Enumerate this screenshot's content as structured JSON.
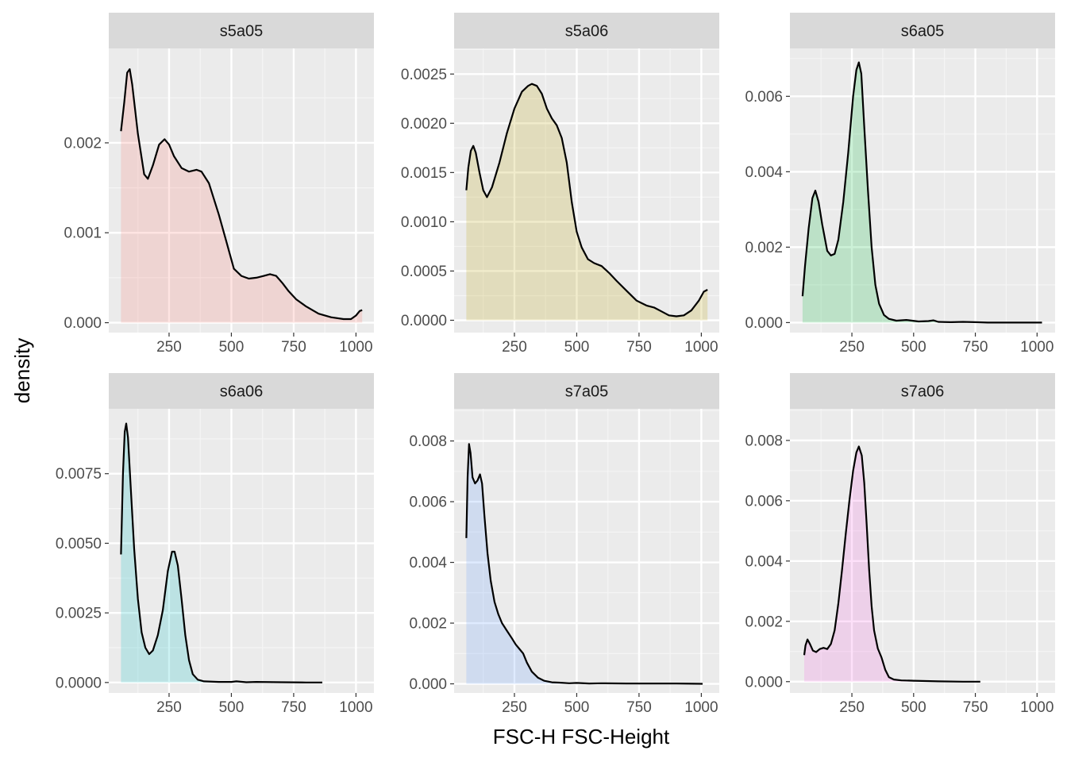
{
  "chart_data": {
    "type": "area",
    "xlabel": "FSC-H FSC-Height",
    "ylabel": "density",
    "grid": true,
    "legend": "none",
    "panels": [
      {
        "name": "s5a05",
        "color": "#F8766D",
        "xlim": [
          8,
          1072
        ],
        "ylim": [
          -0.00011,
          0.00305
        ],
        "xticks": [
          250,
          500,
          750,
          1000
        ],
        "yticks": [
          0,
          0.001,
          0.002
        ],
        "ytick_labels": [
          "0.000",
          "0.001",
          "0.002"
        ],
        "points": [
          [
            57,
            0.00213
          ],
          [
            70,
            0.00245
          ],
          [
            82,
            0.00278
          ],
          [
            92,
            0.00282
          ],
          [
            102,
            0.00265
          ],
          [
            125,
            0.0021
          ],
          [
            150,
            0.00165
          ],
          [
            165,
            0.0016
          ],
          [
            185,
            0.00175
          ],
          [
            210,
            0.00198
          ],
          [
            232,
            0.00204
          ],
          [
            250,
            0.00198
          ],
          [
            270,
            0.00185
          ],
          [
            300,
            0.00172
          ],
          [
            330,
            0.00168
          ],
          [
            360,
            0.0017
          ],
          [
            380,
            0.00168
          ],
          [
            410,
            0.00155
          ],
          [
            450,
            0.0012
          ],
          [
            480,
            0.0009
          ],
          [
            510,
            0.0006
          ],
          [
            540,
            0.00052
          ],
          [
            570,
            0.00049
          ],
          [
            600,
            0.0005
          ],
          [
            630,
            0.00052
          ],
          [
            655,
            0.00054
          ],
          [
            680,
            0.00052
          ],
          [
            705,
            0.00044
          ],
          [
            730,
            0.00035
          ],
          [
            760,
            0.00026
          ],
          [
            800,
            0.00018
          ],
          [
            850,
            0.0001
          ],
          [
            900,
            6e-05
          ],
          [
            950,
            4e-05
          ],
          [
            980,
            4e-05
          ],
          [
            1000,
            8e-05
          ],
          [
            1015,
            0.00013
          ],
          [
            1025,
            0.00014
          ]
        ]
      },
      {
        "name": "s5a06",
        "color": "#B79F00",
        "xlim": [
          8,
          1072
        ],
        "ylim": [
          -0.000125,
          0.00276
        ],
        "xticks": [
          250,
          500,
          750,
          1000
        ],
        "yticks": [
          0,
          0.0005,
          0.001,
          0.0015,
          0.002,
          0.0025
        ],
        "ytick_labels": [
          "0.0000",
          "0.0005",
          "0.0010",
          "0.0015",
          "0.0020",
          "0.0025"
        ],
        "points": [
          [
            57,
            0.00132
          ],
          [
            65,
            0.00155
          ],
          [
            75,
            0.00172
          ],
          [
            85,
            0.00177
          ],
          [
            95,
            0.0017
          ],
          [
            110,
            0.0015
          ],
          [
            125,
            0.00132
          ],
          [
            140,
            0.00125
          ],
          [
            160,
            0.00135
          ],
          [
            190,
            0.0016
          ],
          [
            220,
            0.0019
          ],
          [
            250,
            0.00215
          ],
          [
            280,
            0.00232
          ],
          [
            305,
            0.00238
          ],
          [
            320,
            0.0024
          ],
          [
            340,
            0.00238
          ],
          [
            360,
            0.0023
          ],
          [
            380,
            0.00215
          ],
          [
            400,
            0.00205
          ],
          [
            420,
            0.00198
          ],
          [
            440,
            0.00185
          ],
          [
            460,
            0.0016
          ],
          [
            480,
            0.0012
          ],
          [
            500,
            0.0009
          ],
          [
            520,
            0.00074
          ],
          [
            545,
            0.00062
          ],
          [
            570,
            0.00058
          ],
          [
            600,
            0.00055
          ],
          [
            630,
            0.00048
          ],
          [
            660,
            0.0004
          ],
          [
            700,
            0.0003
          ],
          [
            740,
            0.0002
          ],
          [
            780,
            0.00015
          ],
          [
            810,
            0.00013
          ],
          [
            840,
            9e-05
          ],
          [
            870,
            5e-05
          ],
          [
            900,
            4e-05
          ],
          [
            930,
            5e-05
          ],
          [
            960,
            0.0001
          ],
          [
            990,
            0.0002
          ],
          [
            1010,
            0.00029
          ],
          [
            1025,
            0.00031
          ]
        ]
      },
      {
        "name": "s6a05",
        "color": "#00BA38",
        "xlim": [
          -1,
          1073
        ],
        "ylim": [
          -0.000265,
          0.00727
        ],
        "xticks": [
          250,
          500,
          750,
          1000
        ],
        "yticks": [
          0,
          0.002,
          0.004,
          0.006
        ],
        "ytick_labels": [
          "0.000",
          "0.002",
          "0.004",
          "0.006"
        ],
        "points": [
          [
            50,
            0.0007
          ],
          [
            60,
            0.0015
          ],
          [
            75,
            0.0025
          ],
          [
            90,
            0.0033
          ],
          [
            102,
            0.0035
          ],
          [
            115,
            0.0032
          ],
          [
            130,
            0.0026
          ],
          [
            150,
            0.0019
          ],
          [
            165,
            0.00178
          ],
          [
            180,
            0.00182
          ],
          [
            195,
            0.0022
          ],
          [
            215,
            0.0032
          ],
          [
            235,
            0.0045
          ],
          [
            255,
            0.006
          ],
          [
            268,
            0.0067
          ],
          [
            278,
            0.0069
          ],
          [
            288,
            0.0066
          ],
          [
            300,
            0.0052
          ],
          [
            315,
            0.0035
          ],
          [
            330,
            0.002
          ],
          [
            345,
            0.001
          ],
          [
            360,
            0.0005
          ],
          [
            380,
            0.0002
          ],
          [
            400,
            0.0001
          ],
          [
            430,
            5e-05
          ],
          [
            470,
            7e-05
          ],
          [
            520,
            3e-05
          ],
          [
            560,
            4e-05
          ],
          [
            580,
            6e-05
          ],
          [
            600,
            2e-05
          ],
          [
            650,
            1e-05
          ],
          [
            700,
            2e-05
          ],
          [
            750,
            1e-05
          ],
          [
            800,
            0
          ],
          [
            900,
            0
          ],
          [
            1020,
            0
          ]
        ]
      },
      {
        "name": "s6a06",
        "color": "#00BFC4",
        "xlim": [
          8,
          1072
        ],
        "ylim": [
          -0.000375,
          0.00983
        ],
        "xticks": [
          250,
          500,
          750,
          1000
        ],
        "yticks": [
          0,
          0.0025,
          0.005,
          0.0075
        ],
        "ytick_labels": [
          "0.0000",
          "0.0025",
          "0.0050",
          "0.0075"
        ],
        "points": [
          [
            57,
            0.0046
          ],
          [
            65,
            0.0075
          ],
          [
            72,
            0.009
          ],
          [
            78,
            0.0093
          ],
          [
            85,
            0.0088
          ],
          [
            95,
            0.0072
          ],
          [
            110,
            0.0048
          ],
          [
            125,
            0.003
          ],
          [
            140,
            0.0018
          ],
          [
            155,
            0.00125
          ],
          [
            170,
            0.00102
          ],
          [
            185,
            0.00115
          ],
          [
            205,
            0.0017
          ],
          [
            225,
            0.0026
          ],
          [
            245,
            0.004
          ],
          [
            262,
            0.0047
          ],
          [
            272,
            0.0047
          ],
          [
            285,
            0.0042
          ],
          [
            300,
            0.003
          ],
          [
            315,
            0.0017
          ],
          [
            330,
            0.0008
          ],
          [
            345,
            0.0003
          ],
          [
            365,
            0.0001
          ],
          [
            390,
            4e-05
          ],
          [
            450,
            2e-05
          ],
          [
            500,
            2e-05
          ],
          [
            520,
            4e-05
          ],
          [
            560,
            1e-05
          ],
          [
            600,
            2e-05
          ],
          [
            700,
            1e-05
          ],
          [
            800,
            0
          ],
          [
            865,
            0
          ]
        ]
      },
      {
        "name": "s7a05",
        "color": "#619CFF",
        "xlim": [
          8,
          1072
        ],
        "ylim": [
          -0.0003,
          0.00906
        ],
        "xticks": [
          250,
          500,
          750,
          1000
        ],
        "yticks": [
          0,
          0.002,
          0.004,
          0.006,
          0.008
        ],
        "ytick_labels": [
          "0.000",
          "0.002",
          "0.004",
          "0.006",
          "0.008"
        ],
        "points": [
          [
            57,
            0.0048
          ],
          [
            62,
            0.0068
          ],
          [
            68,
            0.0079
          ],
          [
            74,
            0.0076
          ],
          [
            82,
            0.0068
          ],
          [
            92,
            0.0066
          ],
          [
            102,
            0.0067
          ],
          [
            112,
            0.0069
          ],
          [
            120,
            0.0066
          ],
          [
            130,
            0.0055
          ],
          [
            142,
            0.0043
          ],
          [
            155,
            0.0034
          ],
          [
            170,
            0.0027
          ],
          [
            185,
            0.0023
          ],
          [
            200,
            0.002
          ],
          [
            220,
            0.00175
          ],
          [
            240,
            0.0015
          ],
          [
            255,
            0.0013
          ],
          [
            270,
            0.00115
          ],
          [
            285,
            0.001
          ],
          [
            300,
            0.0007
          ],
          [
            320,
            0.0004
          ],
          [
            345,
            0.0002
          ],
          [
            370,
            0.0001
          ],
          [
            400,
            5e-05
          ],
          [
            430,
            4e-05
          ],
          [
            470,
            2e-05
          ],
          [
            500,
            3e-05
          ],
          [
            550,
            1e-05
          ],
          [
            600,
            2e-05
          ],
          [
            700,
            1e-05
          ],
          [
            800,
            1e-05
          ],
          [
            900,
            1e-05
          ],
          [
            1005,
            0
          ]
        ]
      },
      {
        "name": "s7a06",
        "color": "#F564E3",
        "xlim": [
          -1,
          1073
        ],
        "ylim": [
          -0.000375,
          0.00905
        ],
        "xticks": [
          250,
          500,
          750,
          1000
        ],
        "yticks": [
          0,
          0.002,
          0.004,
          0.006,
          0.008
        ],
        "ytick_labels": [
          "0.000",
          "0.002",
          "0.004",
          "0.006",
          "0.008"
        ],
        "points": [
          [
            57,
            0.00088
          ],
          [
            62,
            0.0012
          ],
          [
            70,
            0.0014
          ],
          [
            80,
            0.00125
          ],
          [
            92,
            0.00103
          ],
          [
            105,
            0.00098
          ],
          [
            120,
            0.00108
          ],
          [
            135,
            0.00112
          ],
          [
            150,
            0.00108
          ],
          [
            165,
            0.00125
          ],
          [
            180,
            0.0017
          ],
          [
            195,
            0.0026
          ],
          [
            210,
            0.0037
          ],
          [
            225,
            0.0049
          ],
          [
            240,
            0.006
          ],
          [
            255,
            0.007
          ],
          [
            268,
            0.0076
          ],
          [
            278,
            0.0078
          ],
          [
            290,
            0.0075
          ],
          [
            300,
            0.0066
          ],
          [
            310,
            0.0052
          ],
          [
            320,
            0.0037
          ],
          [
            330,
            0.0025
          ],
          [
            340,
            0.0017
          ],
          [
            355,
            0.0011
          ],
          [
            370,
            0.0008
          ],
          [
            385,
            0.0004
          ],
          [
            400,
            0.00015
          ],
          [
            420,
            7e-05
          ],
          [
            450,
            4e-05
          ],
          [
            500,
            3e-05
          ],
          [
            550,
            2e-05
          ],
          [
            600,
            1e-05
          ],
          [
            700,
            0
          ],
          [
            770,
            0
          ]
        ]
      }
    ]
  }
}
